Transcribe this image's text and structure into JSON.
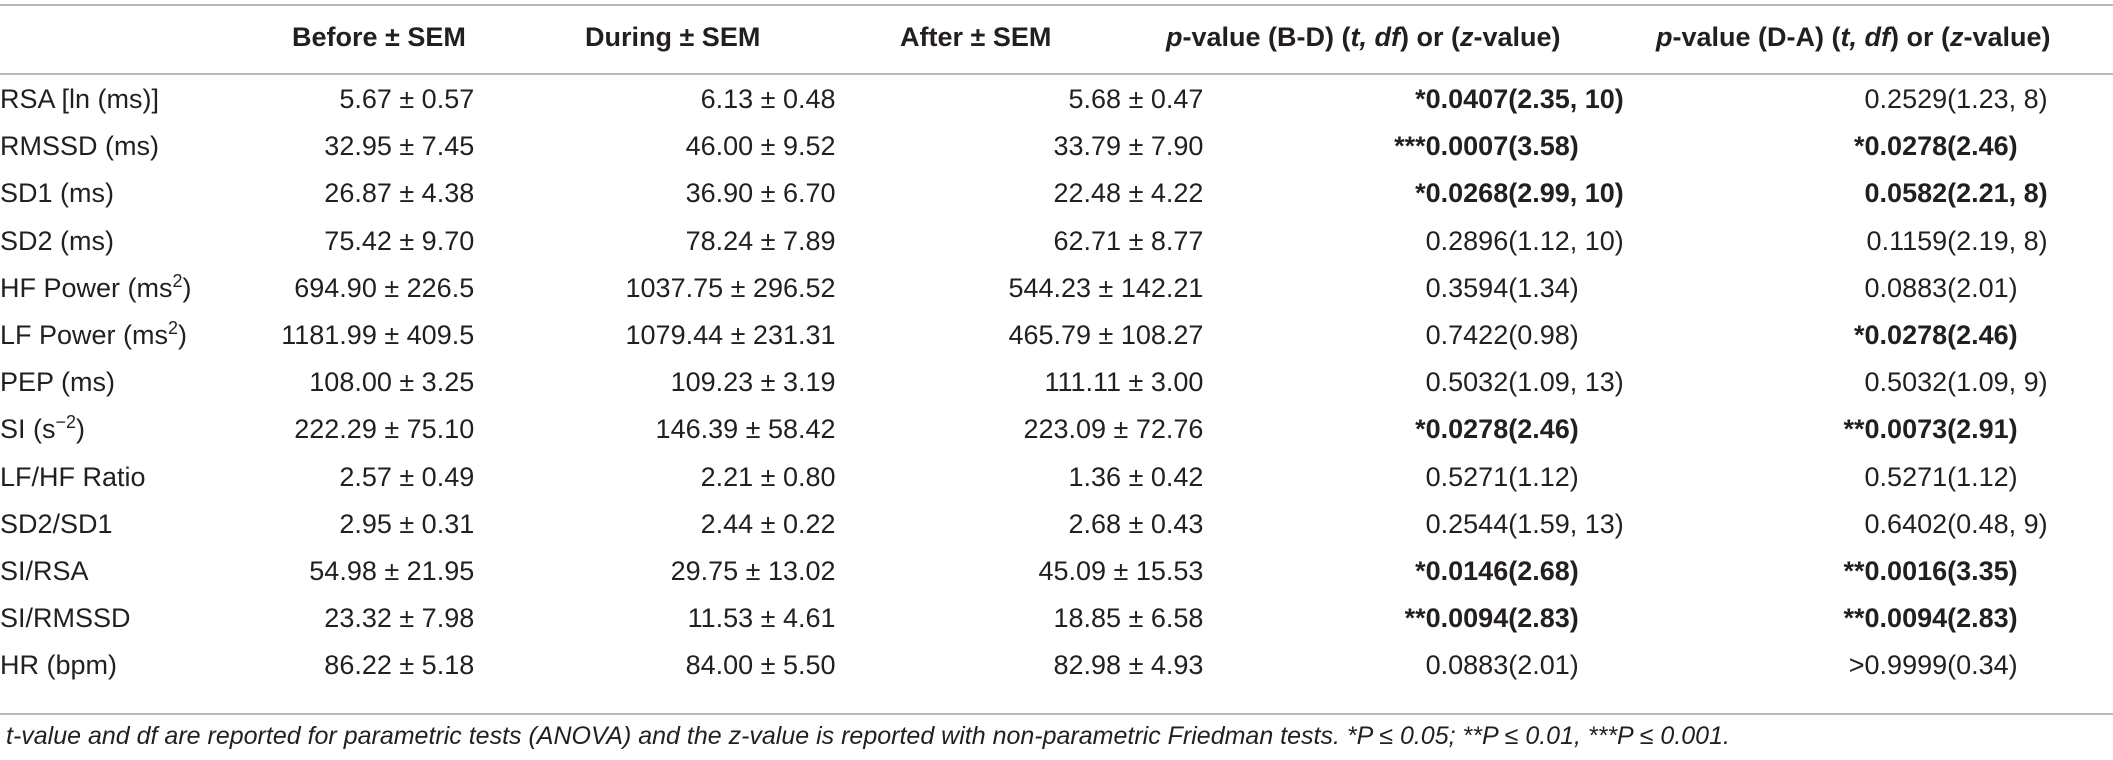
{
  "headers": {
    "before": "Before ± SEM",
    "during": "During ± SEM",
    "after": "After ± SEM",
    "pbd_p": "p",
    "pbd_mid": "-value (B-D) (",
    "pbd_t": "t, df",
    "pbd_close": ") or (",
    "pbd_z": "z",
    "pbd_end": "-value)",
    "pda_p": "p",
    "pda_mid": "-value (D-A) (",
    "pda_t": "t, df",
    "pda_close": ") or (",
    "pda_z": "z",
    "pda_end": "-value)"
  },
  "rows": [
    {
      "label": "RSA [ln (ms)]",
      "label_sup": "",
      "label_end": "",
      "before": "5.67 ± 0.57",
      "during": "6.13 ± 0.48",
      "after": "5.68 ± 0.47",
      "bd_p": "*0.0407",
      "bd_t": "(2.35, 10)",
      "bd_bold": true,
      "da_p": "0.2529",
      "da_t": "(1.23, 8)",
      "da_bold": false
    },
    {
      "label": "RMSSD  (ms)",
      "label_sup": "",
      "label_end": "",
      "before": "32.95 ± 7.45",
      "during": "46.00 ± 9.52",
      "after": "33.79 ± 7.90",
      "bd_p": "***0.0007",
      "bd_t": "(3.58)",
      "bd_bold": true,
      "da_p": "*0.0278",
      "da_t": "(2.46)",
      "da_bold": true
    },
    {
      "label": "SD1  (ms)",
      "label_sup": "",
      "label_end": "",
      "before": "26.87 ± 4.38",
      "during": "36.90 ± 6.70",
      "after": "22.48 ± 4.22",
      "bd_p": "*0.0268",
      "bd_t": "(2.99, 10)",
      "bd_bold": true,
      "da_p": "0.0582",
      "da_t": "(2.21, 8)",
      "da_bold": true
    },
    {
      "label": "SD2  (ms)",
      "label_sup": "",
      "label_end": "",
      "before": "75.42 ± 9.70",
      "during": "78.24 ± 7.89",
      "after": "62.71 ± 8.77",
      "bd_p": "0.2896",
      "bd_t": "(1.12, 10)",
      "bd_bold": false,
      "da_p": "0.1159",
      "da_t": "(2.19, 8)",
      "da_bold": false
    },
    {
      "label": "HF Power  (ms",
      "label_sup": "2",
      "label_end": ")",
      "before": "694.90 ± 226.5",
      "during": "1037.75 ± 296.52",
      "after": "544.23 ± 142.21",
      "bd_p": "0.3594",
      "bd_t": "(1.34)",
      "bd_bold": false,
      "da_p": "0.0883",
      "da_t": "(2.01)",
      "da_bold": false
    },
    {
      "label": "LF Power  (ms",
      "label_sup": "2",
      "label_end": ")",
      "before": "1181.99 ± 409.5",
      "during": "1079.44 ± 231.31",
      "after": "465.79 ± 108.27",
      "bd_p": "0.7422",
      "bd_t": "(0.98)",
      "bd_bold": false,
      "da_p": "*0.0278",
      "da_t": "(2.46)",
      "da_bold": true
    },
    {
      "label": "PEP  (ms)",
      "label_sup": "",
      "label_end": "",
      "before": "108.00 ± 3.25",
      "during": "109.23 ± 3.19",
      "after": "111.11 ± 3.00",
      "bd_p": "0.5032",
      "bd_t": "(1.09, 13)",
      "bd_bold": false,
      "da_p": "0.5032",
      "da_t": "(1.09, 9)",
      "da_bold": false
    },
    {
      "label": "SI  (s",
      "label_sup": "−2",
      "label_end": ")",
      "before": "222.29 ± 75.10",
      "during": "146.39 ± 58.42",
      "after": "223.09 ± 72.76",
      "bd_p": "*0.0278",
      "bd_t": "(2.46)",
      "bd_bold": true,
      "da_p": "**0.0073",
      "da_t": "(2.91)",
      "da_bold": true
    },
    {
      "label": "LF/HF Ratio",
      "label_sup": "",
      "label_end": "",
      "before": "2.57 ± 0.49",
      "during": "2.21 ± 0.80",
      "after": "1.36 ± 0.42",
      "bd_p": "0.5271",
      "bd_t": "(1.12)",
      "bd_bold": false,
      "da_p": "0.5271",
      "da_t": "(1.12)",
      "da_bold": false
    },
    {
      "label": "SD2/SD1",
      "label_sup": "",
      "label_end": "",
      "before": "2.95 ± 0.31",
      "during": "2.44 ± 0.22",
      "after": "2.68 ± 0.43",
      "bd_p": "0.2544",
      "bd_t": "(1.59, 13)",
      "bd_bold": false,
      "da_p": "0.6402",
      "da_t": "(0.48, 9)",
      "da_bold": false
    },
    {
      "label": "SI/RSA",
      "label_sup": "",
      "label_end": "",
      "before": "54.98 ± 21.95",
      "during": "29.75 ± 13.02",
      "after": "45.09 ± 15.53",
      "bd_p": "*0.0146",
      "bd_t": "(2.68)",
      "bd_bold": true,
      "da_p": "**0.0016",
      "da_t": "(3.35)",
      "da_bold": true
    },
    {
      "label": "SI/RMSSD",
      "label_sup": "",
      "label_end": "",
      "before": "23.32 ± 7.98",
      "during": "11.53 ± 4.61",
      "after": "18.85 ± 6.58",
      "bd_p": "**0.0094",
      "bd_t": "(2.83)",
      "bd_bold": true,
      "da_p": "**0.0094",
      "da_t": "(2.83)",
      "da_bold": true
    },
    {
      "label": "HR  (bpm)",
      "label_sup": "",
      "label_end": "",
      "before": "86.22 ± 5.18",
      "during": "84.00 ± 5.50",
      "after": "82.98 ± 4.93",
      "bd_p": "0.0883",
      "bd_t": "(2.01)",
      "bd_bold": false,
      "da_p": ">0.9999",
      "da_t": "(0.34)",
      "da_bold": false
    }
  ],
  "footnote": "t-value and df are reported for parametric tests  (ANOVA) and the z-value is reported with non-parametric Friedman tests. *P ≤ 0.05; **P ≤ 0.01, ***P ≤ 0.001."
}
